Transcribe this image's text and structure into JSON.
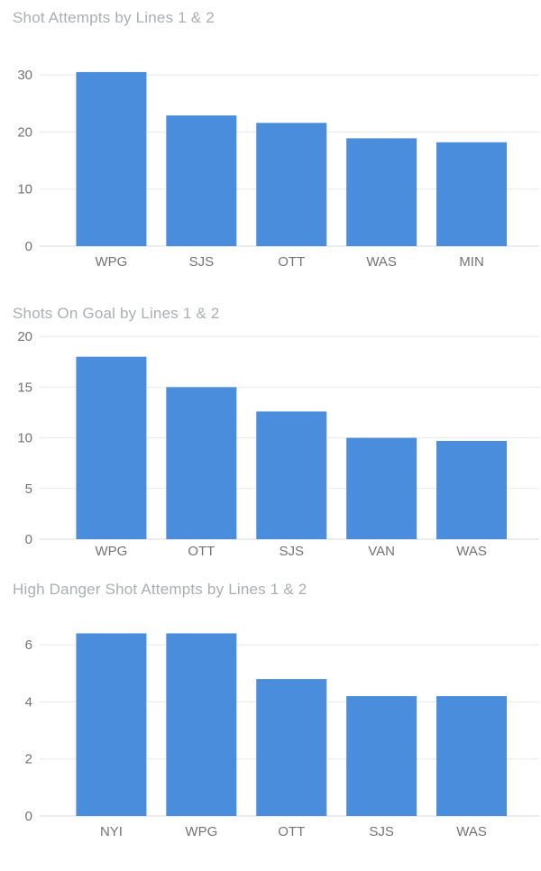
{
  "page": {
    "background": "#ffffff"
  },
  "colors": {
    "bar": "#4a8ddc",
    "title_text": "#abaeb3",
    "axis_text": "#737373",
    "gridline": "#e8e8e8",
    "zero_line": "#d9d9d9"
  },
  "chart_data": [
    {
      "type": "bar",
      "title": "Shot Attempts by Lines 1 & 2",
      "categories": [
        "WPG",
        "SJS",
        "OTT",
        "WAS",
        "MIN"
      ],
      "values": [
        30.5,
        22.9,
        21.6,
        18.9,
        18.2
      ],
      "xlabel": "",
      "ylabel": "",
      "yticks": [
        0,
        10,
        20,
        30
      ],
      "ylim": [
        0,
        32
      ],
      "grid": true,
      "legend_position": "none"
    },
    {
      "type": "bar",
      "title": "Shots On Goal by Lines 1 & 2",
      "categories": [
        "WPG",
        "OTT",
        "SJS",
        "VAN",
        "WAS"
      ],
      "values": [
        18.0,
        15.0,
        12.6,
        10.0,
        9.7
      ],
      "xlabel": "",
      "ylabel": "",
      "yticks": [
        0,
        5,
        10,
        15,
        20
      ],
      "ylim": [
        0,
        20
      ],
      "grid": true,
      "legend_position": "none"
    },
    {
      "type": "bar",
      "title": "High Danger Shot Attempts by Lines 1 & 2",
      "categories": [
        "NYI",
        "WPG",
        "OTT",
        "SJS",
        "WAS"
      ],
      "values": [
        6.4,
        6.4,
        4.8,
        4.2,
        4.2
      ],
      "xlabel": "",
      "ylabel": "",
      "yticks": [
        0,
        2,
        4,
        6
      ],
      "ylim": [
        0,
        6.8
      ],
      "grid": true,
      "legend_position": "none"
    }
  ]
}
